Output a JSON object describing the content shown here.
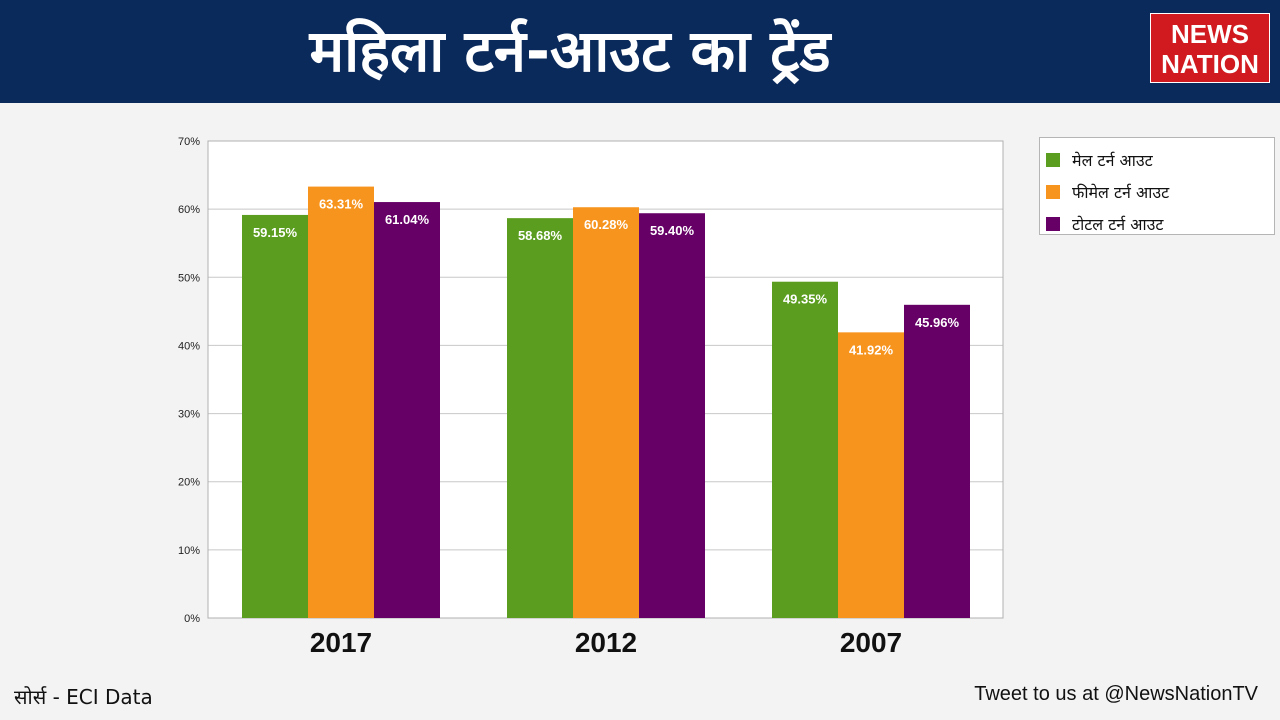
{
  "header": {
    "title": "महिला टर्न-आउट का ट्रेंड",
    "logo_line1": "NEWS",
    "logo_line2": "NATION"
  },
  "footer": {
    "source": "सोर्स - ECI Data",
    "tweet": "Tweet to us at @NewsNationTV"
  },
  "colors": {
    "header_bg": "#0b2a5c",
    "logo_bg": "#d01a1f",
    "male": "#5b9e1f",
    "female": "#f7941d",
    "total": "#660066"
  },
  "chart_data": {
    "type": "bar",
    "categories": [
      "2017",
      "2012",
      "2007"
    ],
    "series": [
      {
        "name": "मेल टर्न आउट",
        "values": [
          59.15,
          58.68,
          49.35
        ],
        "labels": [
          "59.15%",
          "58.68%",
          "49.35%"
        ],
        "color": "#5b9e1f"
      },
      {
        "name": "फीमेल टर्न आउट",
        "values": [
          63.31,
          60.28,
          41.92
        ],
        "labels": [
          "63.31%",
          "60.28%",
          "41.92%"
        ],
        "color": "#f7941d"
      },
      {
        "name": "टोटल टर्न आउट",
        "values": [
          61.04,
          59.4,
          45.96
        ],
        "labels": [
          "61.04%",
          "59.40%",
          "45.96%"
        ],
        "color": "#660066"
      }
    ],
    "yticks": [
      "0%",
      "10%",
      "20%",
      "30%",
      "40%",
      "50%",
      "60%",
      "70%"
    ],
    "ylim": [
      0,
      70
    ],
    "grid": true,
    "legend": "top-right"
  }
}
